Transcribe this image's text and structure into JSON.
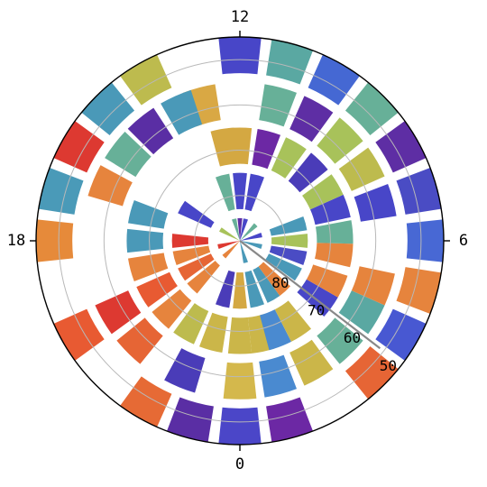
{
  "chart_data": {
    "type": "polar-bar",
    "title": "",
    "theta_unit": "hour",
    "theta_period": 24,
    "theta_zero": "bottom",
    "theta_direction": "counterclockwise",
    "theta_ticks": [
      {
        "label": "0",
        "hour": 0
      },
      {
        "label": "6",
        "hour": 6
      },
      {
        "label": "12",
        "hour": 12
      },
      {
        "label": "18",
        "hour": 18
      }
    ],
    "r_axis": {
      "inverted": true,
      "center_value": 90,
      "edge_value": 45,
      "ticks": [
        {
          "label": "80",
          "value": 80
        },
        {
          "label": "70",
          "value": 70
        },
        {
          "label": "60",
          "value": 60
        },
        {
          "label": "50",
          "value": 50
        }
      ],
      "label_direction_hour": 3.5
    },
    "bar_width_hours": 0.8,
    "grid": true,
    "colormap": "spectral-like",
    "rings": [
      {
        "outer": 45,
        "inner": 53
      },
      {
        "outer": 55,
        "inner": 63
      },
      {
        "outer": 65,
        "inner": 73
      },
      {
        "outer": 75,
        "inner": 83
      },
      {
        "outer": 85,
        "inner": 90
      }
    ],
    "bars": [
      {
        "hour": 0.0,
        "ring": 0,
        "color": "#4b46c8"
      },
      {
        "hour": 1.0,
        "ring": 0,
        "color": "#6c28a4"
      },
      {
        "hour": 3.0,
        "ring": 0,
        "color": "#e66535"
      },
      {
        "hour": 4.0,
        "ring": 0,
        "color": "#4858d2"
      },
      {
        "hour": 5.0,
        "ring": 0,
        "color": "#e6843d"
      },
      {
        "hour": 6.0,
        "ring": 0,
        "color": "#4868d4"
      },
      {
        "hour": 7.0,
        "ring": 0,
        "color": "#4a4cc4"
      },
      {
        "hour": 8.0,
        "ring": 0,
        "color": "#5e2ea4"
      },
      {
        "hour": 9.0,
        "ring": 0,
        "color": "#67b098"
      },
      {
        "hour": 10.0,
        "ring": 0,
        "color": "#4568d3"
      },
      {
        "hour": 11.0,
        "ring": 0,
        "color": "#5aa8a2"
      },
      {
        "hour": 12.0,
        "ring": 0,
        "color": "#4846c8"
      },
      {
        "hour": 14.0,
        "ring": 0,
        "color": "#bdbb4e"
      },
      {
        "hour": 15.0,
        "ring": 0,
        "color": "#4a99b8"
      },
      {
        "hour": 16.0,
        "ring": 0,
        "color": "#dd3931"
      },
      {
        "hour": 17.0,
        "ring": 0,
        "color": "#4a9ab8"
      },
      {
        "hour": 18.0,
        "ring": 0,
        "color": "#e68a3a"
      },
      {
        "hour": 20.0,
        "ring": 0,
        "color": "#e85a32"
      },
      {
        "hour": 22.0,
        "ring": 0,
        "color": "#e66a35"
      },
      {
        "hour": 23.0,
        "ring": 0,
        "color": "#5a2ea4"
      },
      {
        "hour": 0.0,
        "ring": 1,
        "color": "#d4b84c"
      },
      {
        "hour": 1.0,
        "ring": 1,
        "color": "#4a8ad0"
      },
      {
        "hour": 2.0,
        "ring": 1,
        "color": "#cbb649"
      },
      {
        "hour": 3.0,
        "ring": 1,
        "color": "#67b098"
      },
      {
        "hour": 4.0,
        "ring": 1,
        "color": "#5aa8a2"
      },
      {
        "hour": 4.8,
        "ring": 1,
        "color": "#e6843d"
      },
      {
        "hour": 7.0,
        "ring": 1,
        "color": "#4846c8"
      },
      {
        "hour": 8.0,
        "ring": 1,
        "color": "#bdbb4e"
      },
      {
        "hour": 9.0,
        "ring": 1,
        "color": "#a8c25a"
      },
      {
        "hour": 10.0,
        "ring": 1,
        "color": "#5e2ea4"
      },
      {
        "hour": 11.0,
        "ring": 1,
        "color": "#67b098"
      },
      {
        "hour": 13.0,
        "ring": 1,
        "color": "#d9a844"
      },
      {
        "hour": 13.6,
        "ring": 1,
        "color": "#4a99b8"
      },
      {
        "hour": 14.6,
        "ring": 1,
        "color": "#5a2ea4"
      },
      {
        "hour": 15.5,
        "ring": 1,
        "color": "#67b098"
      },
      {
        "hour": 16.5,
        "ring": 1,
        "color": "#e6843d"
      },
      {
        "hour": 20.0,
        "ring": 1,
        "color": "#dd3931"
      },
      {
        "hour": 21.0,
        "ring": 1,
        "color": "#e66535"
      },
      {
        "hour": 22.5,
        "ring": 1,
        "color": "#4a3cb8"
      },
      {
        "hour": 0.0,
        "ring": 2,
        "color": "#cbb649"
      },
      {
        "hour": 0.8,
        "ring": 2,
        "color": "#cbb649"
      },
      {
        "hour": 1.4,
        "ring": 2,
        "color": "#4a8ad0"
      },
      {
        "hour": 2.2,
        "ring": 2,
        "color": "#cbb649"
      },
      {
        "hour": 3.6,
        "ring": 2,
        "color": "#4846c8"
      },
      {
        "hour": 4.4,
        "ring": 2,
        "color": "#e6843d"
      },
      {
        "hour": 5.5,
        "ring": 2,
        "color": "#e6843d"
      },
      {
        "hour": 6.3,
        "ring": 2,
        "color": "#67b098"
      },
      {
        "hour": 7.2,
        "ring": 2,
        "color": "#4846c8"
      },
      {
        "hour": 8.0,
        "ring": 2,
        "color": "#a8c25a"
      },
      {
        "hour": 9.0,
        "ring": 2,
        "color": "#4a3cb8"
      },
      {
        "hour": 10.0,
        "ring": 2,
        "color": "#a8c25a"
      },
      {
        "hour": 11.0,
        "ring": 2,
        "color": "#6c28a4"
      },
      {
        "hour": 12.0,
        "ring": 2,
        "color": "#d4a842"
      },
      {
        "hour": 12.6,
        "ring": 2,
        "color": "#d4a842"
      },
      {
        "hour": 17.0,
        "ring": 2,
        "color": "#4a99b8"
      },
      {
        "hour": 18.0,
        "ring": 2,
        "color": "#4a99b8"
      },
      {
        "hour": 19.0,
        "ring": 2,
        "color": "#e6843d"
      },
      {
        "hour": 20.0,
        "ring": 2,
        "color": "#e85a32"
      },
      {
        "hour": 21.0,
        "ring": 2,
        "color": "#e6843d"
      },
      {
        "hour": 22.0,
        "ring": 2,
        "color": "#bdbb4e"
      },
      {
        "hour": 23.0,
        "ring": 2,
        "color": "#cbb649"
      },
      {
        "hour": 0.0,
        "ring": 3,
        "color": "#d4a842"
      },
      {
        "hour": 1.0,
        "ring": 3,
        "color": "#4a99b8"
      },
      {
        "hour": 2.0,
        "ring": 3,
        "color": "#4a99b8"
      },
      {
        "hour": 2.8,
        "ring": 3,
        "color": "#e6843d"
      },
      {
        "hour": 4.0,
        "ring": 3,
        "color": "#4a99b8"
      },
      {
        "hour": 5.0,
        "ring": 3,
        "color": "#4a4cc4"
      },
      {
        "hour": 6.0,
        "ring": 3,
        "color": "#a8c25a"
      },
      {
        "hour": 7.0,
        "ring": 3,
        "color": "#4a99b8"
      },
      {
        "hour": 11.0,
        "ring": 3,
        "color": "#4846c8"
      },
      {
        "hour": 12.0,
        "ring": 3,
        "color": "#4846c8"
      },
      {
        "hour": 13.0,
        "ring": 3,
        "color": "#67b098"
      },
      {
        "hour": 16.0,
        "ring": 3,
        "color": "#4846c8"
      },
      {
        "hour": 18.0,
        "ring": 3,
        "color": "#dd3931"
      },
      {
        "hour": 19.0,
        "ring": 3,
        "color": "#e6843d"
      },
      {
        "hour": 20.0,
        "ring": 3,
        "color": "#e66535"
      },
      {
        "hour": 21.0,
        "ring": 3,
        "color": "#e6843d"
      },
      {
        "hour": 23.0,
        "ring": 3,
        "color": "#4a3cb8"
      },
      {
        "hour": 1.0,
        "ring": 4,
        "color": "#4a99b8"
      },
      {
        "hour": 5.0,
        "ring": 4,
        "color": "#4a99b8"
      },
      {
        "hour": 7.0,
        "ring": 4,
        "color": "#4846c8"
      },
      {
        "hour": 9.0,
        "ring": 4,
        "color": "#67b098"
      },
      {
        "hour": 11.0,
        "ring": 4,
        "color": "#4846c8"
      },
      {
        "hour": 12.0,
        "ring": 4,
        "color": "#5e2ea4"
      },
      {
        "hour": 13.0,
        "ring": 4,
        "color": "#67b098"
      },
      {
        "hour": 16.0,
        "ring": 4,
        "color": "#a8c25a"
      },
      {
        "hour": 19.0,
        "ring": 4,
        "color": "#dd3931"
      },
      {
        "hour": 21.0,
        "ring": 4,
        "color": "#e6843d"
      }
    ],
    "pointer": {
      "hour": 3.5,
      "from_value": 90,
      "to_value": 51,
      "color": "#888888"
    }
  }
}
